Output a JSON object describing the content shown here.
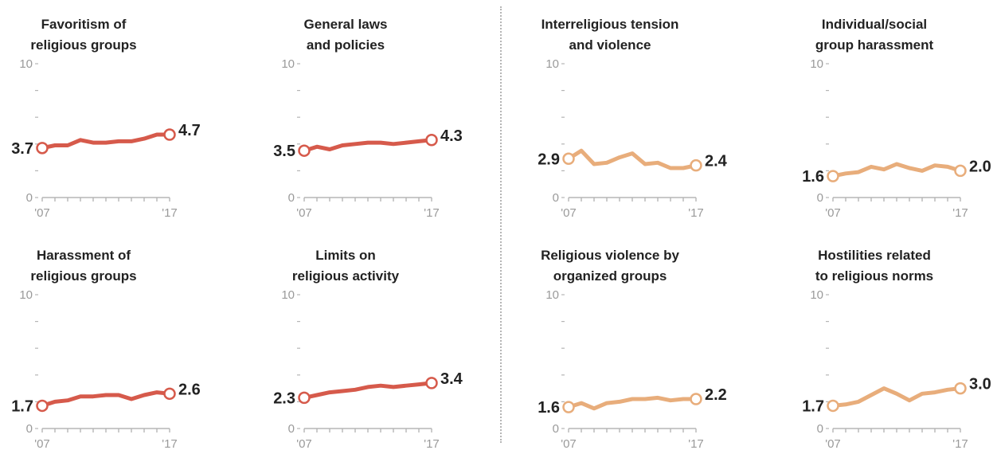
{
  "axis": {
    "y_max_label": "10",
    "y_min_label": "0",
    "x_start_label": "'07",
    "x_end_label": "'17"
  },
  "colors": {
    "restrictions": "#d65a4b",
    "hostilities": "#e8ad7b"
  },
  "chart_data": [
    {
      "type": "line",
      "title": "Favoritism of religious groups",
      "title_lines": [
        "Favoritism of",
        "religious groups"
      ],
      "group": "restrictions",
      "x": [
        2007,
        2008,
        2009,
        2010,
        2011,
        2012,
        2013,
        2014,
        2015,
        2016,
        2017
      ],
      "values": [
        3.7,
        3.9,
        3.9,
        4.3,
        4.1,
        4.1,
        4.2,
        4.2,
        4.4,
        4.7,
        4.7
      ],
      "start_label": "3.7",
      "end_label": "4.7",
      "ylim": [
        0,
        10
      ]
    },
    {
      "type": "line",
      "title": "General laws and policies",
      "title_lines": [
        "General laws",
        "and policies"
      ],
      "group": "restrictions",
      "x": [
        2007,
        2008,
        2009,
        2010,
        2011,
        2012,
        2013,
        2014,
        2015,
        2016,
        2017
      ],
      "values": [
        3.5,
        3.8,
        3.6,
        3.9,
        4.0,
        4.1,
        4.1,
        4.0,
        4.1,
        4.2,
        4.3
      ],
      "start_label": "3.5",
      "end_label": "4.3",
      "ylim": [
        0,
        10
      ]
    },
    {
      "type": "line",
      "title": "Interreligious tension and violence",
      "title_lines": [
        "Interreligious tension",
        "and violence"
      ],
      "group": "hostilities",
      "x": [
        2007,
        2008,
        2009,
        2010,
        2011,
        2012,
        2013,
        2014,
        2015,
        2016,
        2017
      ],
      "values": [
        2.9,
        3.5,
        2.5,
        2.6,
        3.0,
        3.3,
        2.5,
        2.6,
        2.2,
        2.2,
        2.4
      ],
      "start_label": "2.9",
      "end_label": "2.4",
      "ylim": [
        0,
        10
      ]
    },
    {
      "type": "line",
      "title": "Individual/social group harassment",
      "title_lines": [
        "Individual/social",
        "group harassment"
      ],
      "group": "hostilities",
      "x": [
        2007,
        2008,
        2009,
        2010,
        2011,
        2012,
        2013,
        2014,
        2015,
        2016,
        2017
      ],
      "values": [
        1.6,
        1.8,
        1.9,
        2.3,
        2.1,
        2.5,
        2.2,
        2.0,
        2.4,
        2.3,
        2.0
      ],
      "start_label": "1.6",
      "end_label": "2.0",
      "ylim": [
        0,
        10
      ]
    },
    {
      "type": "line",
      "title": "Harassment of religious groups",
      "title_lines": [
        "Harassment of",
        "religious groups"
      ],
      "group": "restrictions",
      "x": [
        2007,
        2008,
        2009,
        2010,
        2011,
        2012,
        2013,
        2014,
        2015,
        2016,
        2017
      ],
      "values": [
        1.7,
        2.0,
        2.1,
        2.4,
        2.4,
        2.5,
        2.5,
        2.2,
        2.5,
        2.7,
        2.6
      ],
      "start_label": "1.7",
      "end_label": "2.6",
      "ylim": [
        0,
        10
      ]
    },
    {
      "type": "line",
      "title": "Limits on religious activity",
      "title_lines": [
        "Limits on",
        "religious activity"
      ],
      "group": "restrictions",
      "x": [
        2007,
        2008,
        2009,
        2010,
        2011,
        2012,
        2013,
        2014,
        2015,
        2016,
        2017
      ],
      "values": [
        2.3,
        2.5,
        2.7,
        2.8,
        2.9,
        3.1,
        3.2,
        3.1,
        3.2,
        3.3,
        3.4
      ],
      "start_label": "2.3",
      "end_label": "3.4",
      "ylim": [
        0,
        10
      ]
    },
    {
      "type": "line",
      "title": "Religious violence by organized groups",
      "title_lines": [
        "Religious violence by",
        "organized groups"
      ],
      "group": "hostilities",
      "x": [
        2007,
        2008,
        2009,
        2010,
        2011,
        2012,
        2013,
        2014,
        2015,
        2016,
        2017
      ],
      "values": [
        1.6,
        1.9,
        1.5,
        1.9,
        2.0,
        2.2,
        2.2,
        2.3,
        2.1,
        2.2,
        2.2
      ],
      "start_label": "1.6",
      "end_label": "2.2",
      "ylim": [
        0,
        10
      ]
    },
    {
      "type": "line",
      "title": "Hostilities related to religious norms",
      "title_lines": [
        "Hostilities related",
        "to religious norms"
      ],
      "group": "hostilities",
      "x": [
        2007,
        2008,
        2009,
        2010,
        2011,
        2012,
        2013,
        2014,
        2015,
        2016,
        2017
      ],
      "values": [
        1.7,
        1.8,
        2.0,
        2.5,
        3.0,
        2.6,
        2.1,
        2.6,
        2.7,
        2.9,
        3.0
      ],
      "start_label": "1.7",
      "end_label": "3.0",
      "ylim": [
        0,
        10
      ]
    }
  ]
}
